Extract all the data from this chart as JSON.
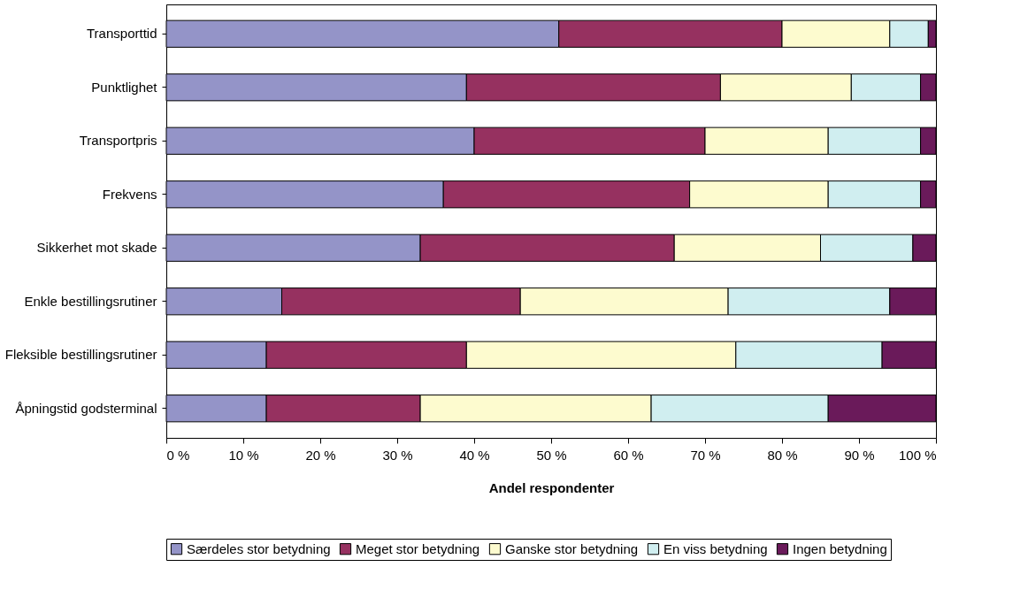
{
  "chart_data": {
    "type": "bar",
    "orientation": "horizontal",
    "stacked": true,
    "categories": [
      "Transporttid",
      "Punktlighet",
      "Transportpris",
      "Frekvens",
      "Sikkerhet mot skade",
      "Enkle bestillingsrutiner",
      "Fleksible bestillingsrutiner",
      "Åpningstid godsterminal"
    ],
    "series": [
      {
        "name": "Særdeles stor betydning",
        "color": "#9494c8",
        "values": [
          51,
          39,
          40,
          36,
          33,
          15,
          13,
          13
        ]
      },
      {
        "name": "Meget stor betydning",
        "color": "#963160",
        "values": [
          29,
          33,
          30,
          32,
          33,
          31,
          26,
          20
        ]
      },
      {
        "name": "Ganske stor betydning",
        "color": "#fdfbcf",
        "values": [
          14,
          17,
          16,
          18,
          19,
          27,
          35,
          30
        ]
      },
      {
        "name": "En viss betydning",
        "color": "#d0eef0",
        "values": [
          5,
          9,
          12,
          12,
          12,
          21,
          19,
          23
        ]
      },
      {
        "name": "Ingen betydning",
        "color": "#6a1a5a",
        "values": [
          1,
          2,
          2,
          2,
          3,
          6,
          7,
          14
        ]
      }
    ],
    "xlabel": "Andel respondenter",
    "xlim": [
      0,
      100
    ],
    "xticks": [
      {
        "value": 0,
        "label": "0 %"
      },
      {
        "value": 10,
        "label": "10 %"
      },
      {
        "value": 20,
        "label": "20 %"
      },
      {
        "value": 30,
        "label": "30 %"
      },
      {
        "value": 40,
        "label": "40 %"
      },
      {
        "value": 50,
        "label": "50 %"
      },
      {
        "value": 60,
        "label": "60 %"
      },
      {
        "value": 70,
        "label": "70 %"
      },
      {
        "value": 80,
        "label": "80 %"
      },
      {
        "value": 90,
        "label": "90 %"
      },
      {
        "value": 100,
        "label": "100 %"
      }
    ],
    "grid": false,
    "legend": "bottom"
  }
}
